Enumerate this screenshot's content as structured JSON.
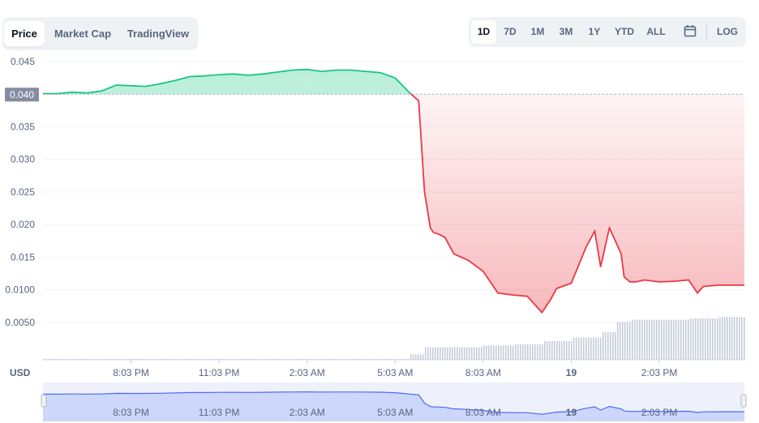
{
  "tabs": {
    "price": "Price",
    "market_cap": "Market Cap",
    "tradingview": "TradingView"
  },
  "ranges": {
    "d1": "1D",
    "d7": "7D",
    "m1": "1M",
    "m3": "3M",
    "y1": "1Y",
    "ytd": "YTD",
    "all": "ALL",
    "calendar_icon": "calendar-icon",
    "log": "LOG"
  },
  "colors": {
    "up": "#16c784",
    "down": "#ea3943",
    "volume": "#c5ccd8",
    "navigator": "#4a6cf7"
  },
  "chart_data": {
    "type": "area",
    "reference_price": "0.040",
    "currency_label": "USD",
    "ylim": [
      0,
      0.046
    ],
    "yticks": [
      "0.0050",
      "0.0100",
      "0.015",
      "0.020",
      "0.025",
      "0.030",
      "0.035",
      "0.040",
      "0.045"
    ],
    "ytick_values": [
      0.005,
      0.01,
      0.015,
      0.02,
      0.025,
      0.03,
      0.035,
      0.04,
      0.045
    ],
    "xticks": [
      "8:03 PM",
      "11:03 PM",
      "2:03 AM",
      "5:03 AM",
      "8:03 AM",
      "19",
      "2:03 PM"
    ],
    "xtick_hours": [
      3,
      6,
      9,
      12,
      15,
      18,
      21
    ],
    "x_range_hours": [
      0,
      23.9
    ],
    "series": [
      {
        "x": [
          0,
          0.5,
          1,
          1.5,
          2,
          2.5,
          3,
          3.5,
          4,
          4.5,
          5,
          5.5,
          6,
          6.5,
          7,
          7.5,
          8,
          8.5,
          9,
          9.5,
          10,
          10.5,
          11,
          11.5,
          12,
          12.3,
          12.5,
          12.8,
          13.0,
          13.2,
          13.3,
          13.5,
          13.7,
          14.0,
          14.5,
          15,
          15.5,
          16,
          16.5,
          17,
          17.3,
          17.5,
          18,
          18.5,
          18.8,
          19,
          19.3,
          19.5,
          19.7,
          19.8,
          20,
          20.2,
          20.5,
          21,
          21.5,
          22,
          22.3,
          22.5,
          23,
          23.5,
          23.9
        ],
        "y": [
          0.0401,
          0.0401,
          0.0403,
          0.0402,
          0.0405,
          0.0414,
          0.0413,
          0.0412,
          0.0416,
          0.0421,
          0.0427,
          0.0428,
          0.043,
          0.0431,
          0.0429,
          0.0431,
          0.0434,
          0.0437,
          0.0438,
          0.0435,
          0.0437,
          0.0437,
          0.0435,
          0.0433,
          0.0425,
          0.0411,
          0.0402,
          0.039,
          0.025,
          0.0195,
          0.0188,
          0.0185,
          0.018,
          0.0155,
          0.0145,
          0.0128,
          0.0095,
          0.0092,
          0.009,
          0.0065,
          0.0085,
          0.0102,
          0.011,
          0.0165,
          0.019,
          0.0135,
          0.0195,
          0.0175,
          0.0155,
          0.012,
          0.0112,
          0.0112,
          0.0115,
          0.0112,
          0.0113,
          0.0115,
          0.0095,
          0.0105,
          0.0107,
          0.0107,
          0.0107
        ]
      }
    ],
    "volume_levels": [
      [
        0,
        0.02
      ],
      [
        12.5,
        0.12
      ],
      [
        13,
        0.28
      ],
      [
        15,
        0.32
      ],
      [
        16,
        0.35
      ],
      [
        17,
        0.42
      ],
      [
        18,
        0.5
      ],
      [
        19,
        0.62
      ],
      [
        19.5,
        0.85
      ],
      [
        20,
        0.9
      ],
      [
        22,
        0.93
      ],
      [
        23,
        0.96
      ]
    ]
  }
}
